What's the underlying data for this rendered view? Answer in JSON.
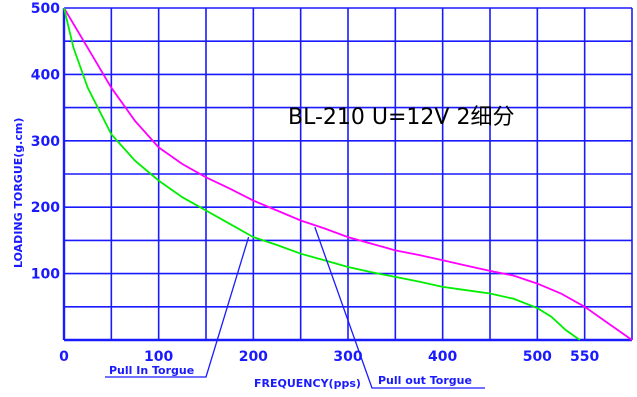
{
  "chart_data": {
    "type": "line",
    "title": "BL-210 U=12V  2细分",
    "xlabel": "FREQUENCY(pps)",
    "ylabel": "LOADING TORGUE(g.cm)",
    "xlim": [
      0,
      600
    ],
    "ylim": [
      0,
      500
    ],
    "x_ticks": [
      "0",
      "100",
      "200",
      "300",
      "400",
      "500",
      "550"
    ],
    "x_tick_values": [
      0,
      100,
      200,
      300,
      400,
      500,
      550
    ],
    "y_ticks": [
      "100",
      "200",
      "300",
      "400",
      "500"
    ],
    "y_tick_values": [
      100,
      200,
      300,
      400,
      500
    ],
    "grid": true,
    "series": [
      {
        "name": "Pull out Torgue",
        "color": "#ff00ff",
        "points": [
          [
            0,
            500
          ],
          [
            25,
            440
          ],
          [
            50,
            380
          ],
          [
            75,
            330
          ],
          [
            100,
            290
          ],
          [
            125,
            265
          ],
          [
            150,
            245
          ],
          [
            175,
            228
          ],
          [
            200,
            210
          ],
          [
            225,
            195
          ],
          [
            250,
            180
          ],
          [
            275,
            168
          ],
          [
            300,
            155
          ],
          [
            325,
            145
          ],
          [
            350,
            135
          ],
          [
            375,
            128
          ],
          [
            400,
            120
          ],
          [
            425,
            112
          ],
          [
            450,
            104
          ],
          [
            475,
            97
          ],
          [
            500,
            85
          ],
          [
            525,
            70
          ],
          [
            550,
            50
          ],
          [
            575,
            25
          ],
          [
            600,
            0
          ]
        ]
      },
      {
        "name": "Pull In Torgue",
        "color": "#00ee00",
        "points": [
          [
            0,
            500
          ],
          [
            10,
            440
          ],
          [
            25,
            380
          ],
          [
            50,
            310
          ],
          [
            75,
            270
          ],
          [
            100,
            240
          ],
          [
            125,
            215
          ],
          [
            150,
            195
          ],
          [
            175,
            175
          ],
          [
            200,
            155
          ],
          [
            225,
            143
          ],
          [
            250,
            130
          ],
          [
            275,
            120
          ],
          [
            300,
            110
          ],
          [
            325,
            102
          ],
          [
            350,
            95
          ],
          [
            375,
            88
          ],
          [
            400,
            80
          ],
          [
            425,
            75
          ],
          [
            450,
            70
          ],
          [
            475,
            62
          ],
          [
            500,
            48
          ],
          [
            515,
            35
          ],
          [
            530,
            15
          ],
          [
            545,
            0
          ]
        ]
      }
    ],
    "annotations": [
      {
        "text": "Pull In Torgue",
        "points_to": [
          195,
          155
        ]
      },
      {
        "text": "Pull out Torgue",
        "points_to": [
          265,
          170
        ]
      }
    ]
  }
}
